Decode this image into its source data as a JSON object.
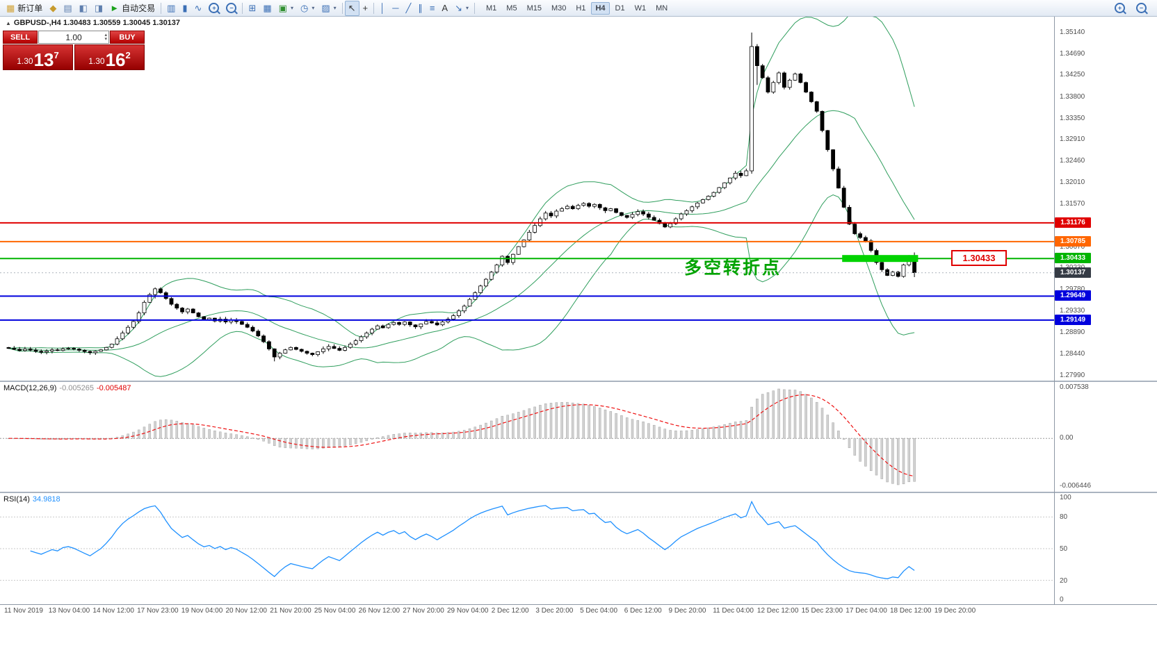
{
  "glyphs": {
    "caret": "▾",
    "volume_up": "▴",
    "volume_down": "▾",
    "collapse": "▲"
  },
  "toolbar": {
    "new_order_label": "新订单",
    "auto_trading_label": "自动交易",
    "timeframes": [
      "M1",
      "M5",
      "M15",
      "M30",
      "H1",
      "H4",
      "D1",
      "W1",
      "MN"
    ],
    "active_timeframe": "H4",
    "buttons": [
      {
        "kind": "btn",
        "name": "new-order-button",
        "glyph": "▦",
        "color": "#d2a43a",
        "label_key": "new_order_label"
      },
      {
        "kind": "btn",
        "name": "alerts-icon",
        "glyph": "◆",
        "color": "#c79b2e"
      },
      {
        "kind": "btn",
        "name": "print-icon",
        "glyph": "▤",
        "color": "#5f7fae"
      },
      {
        "kind": "btn",
        "name": "market-watch-icon",
        "glyph": "◧",
        "color": "#5f7fae"
      },
      {
        "kind": "btn",
        "name": "navigator-icon",
        "glyph": "◨",
        "color": "#5f7fae"
      },
      {
        "kind": "btn",
        "name": "auto-trading-button",
        "glyph": "►",
        "color": "#1ca21c",
        "label_key": "auto_trading_label"
      },
      {
        "kind": "sep"
      },
      {
        "kind": "btn",
        "name": "bar-chart-type-icon",
        "glyph": "▥",
        "color": "#3b6fb5"
      },
      {
        "kind": "btn",
        "name": "candlestick-chart-type-icon",
        "glyph": "▮",
        "color": "#3b6fb5"
      },
      {
        "kind": "btn",
        "name": "line-chart-type-icon",
        "glyph": "∿",
        "color": "#3b6fb5"
      },
      {
        "kind": "lens",
        "name": "zoom-in-icon",
        "sign": "+"
      },
      {
        "kind": "lens",
        "name": "zoom-out-icon",
        "sign": "−"
      },
      {
        "kind": "sep"
      },
      {
        "kind": "btn",
        "name": "grid-icon",
        "glyph": "⊞",
        "color": "#3b6fb5"
      },
      {
        "kind": "btn",
        "name": "tile-windows-icon",
        "glyph": "▦",
        "color": "#3b6fb5"
      },
      {
        "kind": "btn",
        "name": "new-chart-button",
        "glyph": "▣",
        "color": "#2f8f2f",
        "caret": true
      },
      {
        "kind": "btn",
        "name": "period-selector-button",
        "glyph": "◷",
        "color": "#3b6fb5",
        "caret": true
      },
      {
        "kind": "btn",
        "name": "template-button",
        "glyph": "▨",
        "color": "#3b6fb5",
        "caret": true
      },
      {
        "kind": "sep"
      },
      {
        "kind": "btn",
        "name": "cursor-icon",
        "glyph": "↖",
        "color": "#333333",
        "active": true
      },
      {
        "kind": "btn",
        "name": "crosshair-icon",
        "glyph": "+",
        "color": "#333333"
      },
      {
        "kind": "sep"
      },
      {
        "kind": "btn",
        "name": "vertical-line-icon",
        "glyph": "│",
        "color": "#3b6fb5"
      },
      {
        "kind": "btn",
        "name": "horizontal-line-icon",
        "glyph": "─",
        "color": "#3b6fb5"
      },
      {
        "kind": "btn",
        "name": "trendline-icon",
        "glyph": "╱",
        "color": "#3b6fb5"
      },
      {
        "kind": "btn",
        "name": "channel-icon",
        "glyph": "∥",
        "color": "#3b6fb5"
      },
      {
        "kind": "btn",
        "name": "fibonacci-icon",
        "glyph": "≡",
        "color": "#3b6fb5"
      },
      {
        "kind": "btn",
        "name": "text-label-icon",
        "glyph": "A",
        "color": "#333333"
      },
      {
        "kind": "btn",
        "name": "arrows-icon",
        "glyph": "↘",
        "color": "#3b6fb5",
        "caret": true
      },
      {
        "kind": "sep"
      }
    ],
    "right_buttons": [
      {
        "kind": "lens",
        "name": "magnifier-zoom-in-icon",
        "sign": "+"
      },
      {
        "kind": "lens",
        "name": "magnifier-zoom-out-icon",
        "sign": "−"
      }
    ]
  },
  "trade_panel": {
    "sell_label": "SELL",
    "buy_label": "BUY",
    "volume": "1.00",
    "sell_price": {
      "prefix": "1.30",
      "big": "13",
      "sup": "7"
    },
    "buy_price": {
      "prefix": "1.30",
      "big": "16",
      "sup": "2"
    }
  },
  "chart": {
    "symbol_ohlc": "GBPUSD-,H4  1.30483 1.30559 1.30045 1.30137",
    "annotation": "多空转折点",
    "line_label": "1.30433",
    "price_scale": [
      "1.35140",
      "1.34690",
      "1.34250",
      "1.33800",
      "1.33350",
      "1.32910",
      "1.32460",
      "1.32010",
      "1.31570",
      "1.31120",
      "1.30670",
      "1.30230",
      "1.29780",
      "1.29330",
      "1.28890",
      "1.28440",
      "1.27990"
    ],
    "price_tags": [
      {
        "text": "1.31176",
        "price": 1.31176,
        "color": "#e00000"
      },
      {
        "text": "1.30785",
        "price": 1.30785,
        "color": "#ff6600"
      },
      {
        "text": "1.30433",
        "price": 1.30433,
        "color": "#00b400"
      },
      {
        "text": "1.30137",
        "price": 1.30137,
        "color": "#353b45"
      },
      {
        "text": "1.29649",
        "price": 1.29649,
        "color": "#0000dd"
      },
      {
        "text": "1.29149",
        "price": 1.29149,
        "color": "#0000dd"
      }
    ],
    "hlines": [
      {
        "price": 1.31176,
        "color": "#e00000"
      },
      {
        "price": 1.30785,
        "color": "#ff6600"
      },
      {
        "price": 1.30433,
        "color": "#00b400"
      },
      {
        "price": 1.29649,
        "color": "#0000dd"
      },
      {
        "price": 1.29149,
        "color": "#0000dd"
      }
    ]
  },
  "macd_panel": {
    "label": "MACD(12,26,9)",
    "main_value": "-0.005265",
    "signal_value": "-0.005487",
    "scale_top": "0.007538",
    "scale_zero": "0.00",
    "scale_bottom": "-0.006446"
  },
  "rsi_panel": {
    "label": "RSI(14)",
    "value": "34.9818",
    "scale": [
      "100",
      "80",
      "50",
      "20",
      "0"
    ],
    "levels": [
      80,
      50,
      20
    ]
  },
  "time_axis": {
    "labels": [
      "11 Nov 2019",
      "13 Nov 04:00",
      "14 Nov 12:00",
      "17 Nov 23:00",
      "19 Nov 04:00",
      "20 Nov 12:00",
      "21 Nov 20:00",
      "25 Nov 04:00",
      "26 Nov 12:00",
      "27 Nov 20:00",
      "29 Nov 04:00",
      "2 Dec 12:00",
      "3 Dec 20:00",
      "5 Dec 04:00",
      "6 Dec 12:00",
      "9 Dec 20:00",
      "11 Dec 04:00",
      "12 Dec 12:00",
      "15 Dec 23:00",
      "17 Dec 04:00",
      "18 Dec 12:00",
      "19 Dec 20:00"
    ]
  },
  "chart_data": {
    "type": "candlestick",
    "title": "GBPUSD- H4",
    "price_max": 1.35472,
    "price_min": 1.27889,
    "current_price": 1.30137,
    "closes": [
      1.2856,
      1.2854,
      1.28515,
      1.28545,
      1.28525,
      1.285,
      1.2848,
      1.28505,
      1.2853,
      1.28515,
      1.2855,
      1.2856,
      1.28545,
      1.2852,
      1.28495,
      1.2847,
      1.285,
      1.2853,
      1.2858,
      1.2865,
      1.2876,
      1.2888,
      1.29,
      1.2912,
      1.293,
      1.2952,
      1.2968,
      1.298,
      1.2972,
      1.296,
      1.2948,
      1.294,
      1.2932,
      1.2938,
      1.293,
      1.2922,
      1.2916,
      1.2919,
      1.2913,
      1.2917,
      1.2911,
      1.2915,
      1.2912,
      1.2906,
      1.29,
      1.2892,
      1.2882,
      1.287,
      1.2855,
      1.2838,
      1.2846,
      1.2853,
      1.2858,
      1.2854,
      1.285,
      1.2846,
      1.2843,
      1.2849,
      1.2855,
      1.286,
      1.2856,
      1.2852,
      1.2858,
      1.2865,
      1.2872,
      1.288,
      1.2888,
      1.2896,
      1.2903,
      1.2899,
      1.2906,
      1.291,
      1.2906,
      1.2911,
      1.2905,
      1.2901,
      1.2907,
      1.2912,
      1.2909,
      1.2905,
      1.2911,
      1.2917,
      1.2924,
      1.2934,
      1.2944,
      1.2958,
      1.2972,
      1.2986,
      1.3,
      1.3015,
      1.303,
      1.3048,
      1.3035,
      1.3052,
      1.3068,
      1.3082,
      1.3098,
      1.3112,
      1.3126,
      1.3138,
      1.3132,
      1.3142,
      1.3147,
      1.3152,
      1.3147,
      1.3154,
      1.3158,
      1.3152,
      1.3156,
      1.3149,
      1.3143,
      1.3147,
      1.3139,
      1.3133,
      1.3129,
      1.3135,
      1.3141,
      1.3136,
      1.3129,
      1.3123,
      1.3116,
      1.3109,
      1.3116,
      1.3126,
      1.3136,
      1.3143,
      1.3151,
      1.3159,
      1.3166,
      1.3173,
      1.3181,
      1.3191,
      1.3201,
      1.3211,
      1.3221,
      1.3216,
      1.3226,
      1.3485,
      1.3445,
      1.342,
      1.339,
      1.341,
      1.343,
      1.34,
      1.3415,
      1.3428,
      1.341,
      1.339,
      1.337,
      1.335,
      1.331,
      1.327,
      1.323,
      1.319,
      1.315,
      1.3115,
      1.3095,
      1.3087,
      1.308,
      1.306,
      1.3035,
      1.302,
      1.3008,
      1.3015,
      1.3006,
      1.303,
      1.30483,
      1.30137
    ],
    "candle_overrides": {
      "27": [
        1.2968,
        1.2983,
        1.296,
        1.298
      ],
      "49": [
        1.2855,
        1.2856,
        1.2829,
        1.2838
      ],
      "137": [
        1.3226,
        1.3514,
        1.322,
        1.3485
      ],
      "138": [
        1.3485,
        1.349,
        1.3405,
        1.3445
      ],
      "167": [
        1.30483,
        1.30559,
        1.30045,
        1.30137
      ]
    },
    "bollinger": {
      "period": 20,
      "deviation": 2
    },
    "macd": {
      "fast": 12,
      "slow": 26,
      "signal": 9
    },
    "rsi": {
      "period": 14
    },
    "highlight_bar": {
      "price": 1.30433,
      "from_index": 154,
      "to_index": 168
    },
    "colors": {
      "bands": "#2f9e5d",
      "bull_fill": "#ffffff",
      "bear_fill": "#000000",
      "candle_stroke": "#000000",
      "macd_hist": "#d2d2d2",
      "macd_hist_stroke": "#a6a6a6",
      "macd_signal": "#ee1111",
      "rsi_line": "#1e90ff",
      "highlight": "#00d300",
      "current_price_line": "#aab2bb"
    }
  }
}
